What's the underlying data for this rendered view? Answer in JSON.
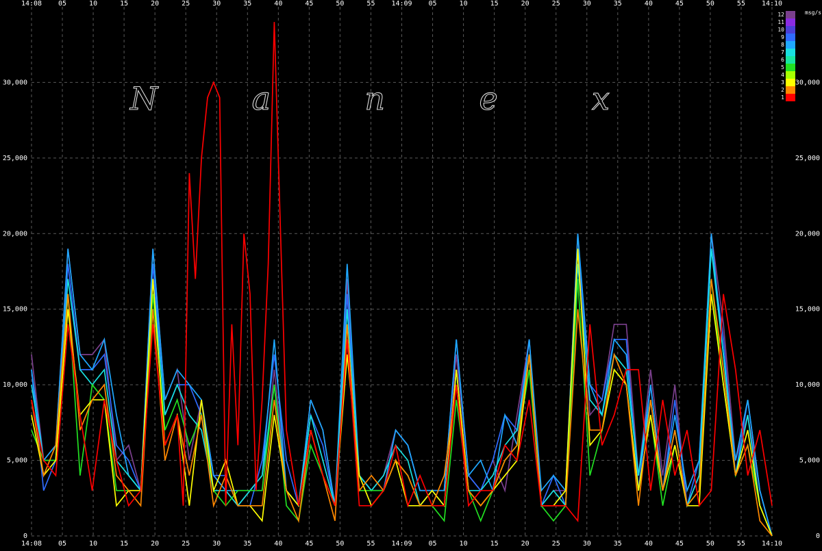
{
  "chart_data": {
    "type": "line",
    "title": "",
    "xlabel": "",
    "ylabel": "msg/s",
    "watermark": "Nanex",
    "ylim": [
      0,
      35000
    ],
    "xlim_seconds": [
      0,
      122
    ],
    "grid": true,
    "legend_position": "top-right",
    "x_top_ticks": [
      "14:08",
      "05",
      "10",
      "15",
      "20",
      "25",
      "30",
      "35",
      "40",
      "45",
      "50",
      "55",
      "14:09",
      "05",
      "10",
      "15",
      "20",
      "25",
      "30",
      "35",
      "40",
      "45",
      "50",
      "55",
      "14:10"
    ],
    "x_bottom_ticks": [
      "14:08",
      "05",
      "10",
      "15",
      "20",
      "25",
      "30",
      "35",
      "40",
      "45",
      "50",
      "55",
      "14:09",
      "05",
      "10",
      "15",
      "20",
      "25",
      "30",
      "35",
      "40",
      "45",
      "50",
      "55",
      "14:10"
    ],
    "y_ticks": [
      {
        "value": 0,
        "label": "0"
      },
      {
        "value": 5000,
        "label": "5,000"
      },
      {
        "value": 10000,
        "label": "10,000"
      },
      {
        "value": 15000,
        "label": "15,000"
      },
      {
        "value": 20000,
        "label": "20,000"
      },
      {
        "value": 25000,
        "label": "25,000"
      },
      {
        "value": 30000,
        "label": "30,000"
      }
    ],
    "legend": [
      {
        "label": "12",
        "color": "#7a3f8c"
      },
      {
        "label": "11",
        "color": "#8a2be2"
      },
      {
        "label": "10",
        "color": "#4b3fd6"
      },
      {
        "label": "9",
        "color": "#2f6bff"
      },
      {
        "label": "8",
        "color": "#1fa8ff"
      },
      {
        "label": "7",
        "color": "#19e0e0"
      },
      {
        "label": "6",
        "color": "#18e6a0"
      },
      {
        "label": "5",
        "color": "#22e022"
      },
      {
        "label": "4",
        "color": "#a6ff00"
      },
      {
        "label": "3",
        "color": "#ffff00"
      },
      {
        "label": "2",
        "color": "#ff8800"
      },
      {
        "label": "1",
        "color": "#ff0000"
      }
    ],
    "series": [
      {
        "color": "#7a3f8c",
        "x": [
          0,
          2,
          4,
          6,
          8,
          10,
          12,
          14,
          16,
          18,
          20,
          22,
          24,
          26,
          28,
          30,
          32,
          34,
          36,
          38,
          40,
          42,
          44,
          46,
          48,
          50,
          52,
          54,
          56,
          58,
          60,
          62,
          64,
          66,
          68,
          70,
          72,
          74,
          76,
          78,
          80,
          82,
          84,
          86,
          88,
          90,
          92,
          94,
          96,
          98,
          100,
          102,
          104,
          106,
          108,
          110,
          112,
          114,
          116,
          118,
          120,
          122
        ],
        "y": [
          12000,
          5000,
          6000,
          19000,
          12000,
          12000,
          13000,
          5000,
          6000,
          3000,
          19000,
          9000,
          11000,
          5000,
          9000,
          4000,
          3000,
          2000,
          3000,
          3000,
          11000,
          3000,
          2000,
          9000,
          7000,
          2000,
          17000,
          4000,
          3000,
          4000,
          7000,
          6000,
          3000,
          3000,
          3000,
          12000,
          4000,
          3000,
          5000,
          3000,
          8000,
          13000,
          2000,
          3000,
          3000,
          20000,
          8000,
          9000,
          14000,
          14000,
          4000,
          11000,
          4000,
          10000,
          2000,
          4000,
          20000,
          14000,
          5000,
          8000,
          3000,
          0
        ]
      },
      {
        "color": "#2f6bff",
        "x": [
          0,
          2,
          4,
          6,
          8,
          10,
          12,
          14,
          16,
          18,
          20,
          22,
          24,
          26,
          28,
          30,
          32,
          34,
          36,
          38,
          40,
          42,
          44,
          46,
          48,
          50,
          52,
          54,
          56,
          58,
          60,
          62,
          64,
          66,
          68,
          70,
          72,
          74,
          76,
          78,
          80,
          82,
          84,
          86,
          88,
          90,
          92,
          94,
          96,
          98,
          100,
          102,
          104,
          106,
          108,
          110,
          112,
          114,
          116,
          118,
          120,
          122
        ],
        "y": [
          11000,
          3000,
          5000,
          18000,
          11000,
          11000,
          12000,
          6000,
          5000,
          3000,
          18000,
          8000,
          10000,
          10000,
          8000,
          4000,
          4000,
          2000,
          2000,
          5000,
          12000,
          5000,
          2000,
          8000,
          6000,
          2000,
          16000,
          4000,
          3000,
          3000,
          7000,
          6000,
          3000,
          3000,
          3000,
          13000,
          4000,
          3000,
          5000,
          8000,
          7000,
          13000,
          2000,
          4000,
          2000,
          19000,
          10000,
          9000,
          13000,
          13000,
          3000,
          10000,
          3000,
          9000,
          2000,
          5000,
          19000,
          13000,
          4000,
          9000,
          3000,
          0
        ]
      },
      {
        "color": "#1fa8ff",
        "x": [
          0,
          2,
          4,
          6,
          8,
          10,
          12,
          14,
          16,
          18,
          20,
          22,
          24,
          26,
          28,
          30,
          32,
          34,
          36,
          38,
          40,
          42,
          44,
          46,
          48,
          50,
          52,
          54,
          56,
          58,
          60,
          62,
          64,
          66,
          68,
          70,
          72,
          74,
          76,
          78,
          80,
          82,
          84,
          86,
          88,
          90,
          92,
          94,
          96,
          98,
          100,
          102,
          104,
          106,
          108,
          110,
          112,
          114,
          116,
          118,
          120,
          122
        ],
        "y": [
          11000,
          5000,
          6000,
          19000,
          12000,
          11000,
          13000,
          8000,
          4000,
          3000,
          19000,
          9000,
          11000,
          10000,
          9000,
          4000,
          3000,
          3000,
          3000,
          4000,
          13000,
          3000,
          2000,
          9000,
          7000,
          2000,
          18000,
          4000,
          3000,
          3000,
          7000,
          6000,
          3000,
          3000,
          3000,
          13000,
          4000,
          5000,
          3000,
          8000,
          6000,
          13000,
          3000,
          4000,
          3000,
          20000,
          10000,
          8000,
          13000,
          12000,
          4000,
          10000,
          3000,
          8000,
          3000,
          5000,
          20000,
          12000,
          5000,
          9000,
          3000,
          0
        ]
      },
      {
        "color": "#19e0e0",
        "x": [
          0,
          2,
          4,
          6,
          8,
          10,
          12,
          14,
          16,
          18,
          20,
          22,
          24,
          26,
          28,
          30,
          32,
          34,
          36,
          38,
          40,
          42,
          44,
          46,
          48,
          50,
          52,
          54,
          56,
          58,
          60,
          62,
          64,
          66,
          68,
          70,
          72,
          74,
          76,
          78,
          80,
          82,
          84,
          86,
          88,
          90,
          92,
          94,
          96,
          98,
          100,
          102,
          104,
          106,
          108,
          110,
          112,
          114,
          116,
          118,
          120,
          122
        ],
        "y": [
          10000,
          5000,
          5000,
          17000,
          11000,
          10000,
          11000,
          5000,
          4000,
          3000,
          17000,
          8000,
          10000,
          8000,
          7000,
          3000,
          3000,
          2000,
          3000,
          4000,
          10000,
          3000,
          2000,
          8000,
          5000,
          2000,
          15000,
          4000,
          3000,
          4000,
          6000,
          5000,
          2000,
          3000,
          2000,
          11000,
          3000,
          3000,
          4000,
          6000,
          7000,
          12000,
          2000,
          3000,
          2000,
          18000,
          9000,
          8000,
          12000,
          11000,
          4000,
          9000,
          3000,
          7000,
          2000,
          4000,
          19000,
          12000,
          4000,
          8000,
          2000,
          0
        ]
      },
      {
        "color": "#22e022",
        "x": [
          0,
          2,
          4,
          6,
          8,
          10,
          12,
          14,
          16,
          18,
          20,
          22,
          24,
          26,
          28,
          30,
          32,
          34,
          36,
          38,
          40,
          42,
          44,
          46,
          48,
          50,
          52,
          54,
          56,
          58,
          60,
          62,
          64,
          66,
          68,
          70,
          72,
          74,
          76,
          78,
          80,
          82,
          84,
          86,
          88,
          90,
          92,
          94,
          96,
          98,
          100,
          102,
          104,
          106,
          108,
          110,
          112,
          114,
          116,
          118,
          120,
          122
        ],
        "y": [
          7000,
          5000,
          5000,
          16000,
          4000,
          10000,
          9000,
          3000,
          3000,
          3000,
          16000,
          7000,
          9000,
          6000,
          8000,
          3000,
          2000,
          3000,
          3000,
          3000,
          10000,
          2000,
          1000,
          6000,
          4000,
          2000,
          13000,
          3000,
          3000,
          3000,
          5000,
          4000,
          2000,
          2000,
          1000,
          9000,
          3000,
          1000,
          3000,
          5000,
          6000,
          11000,
          2000,
          1000,
          2000,
          17000,
          4000,
          7000,
          11000,
          10000,
          3000,
          8000,
          2000,
          6000,
          2000,
          3000,
          17000,
          10000,
          4000,
          6000,
          2000,
          0
        ]
      },
      {
        "color": "#ffff00",
        "x": [
          0,
          2,
          4,
          6,
          8,
          10,
          12,
          14,
          16,
          18,
          20,
          22,
          24,
          26,
          28,
          30,
          32,
          34,
          36,
          38,
          40,
          42,
          44,
          46,
          48,
          50,
          52,
          54,
          56,
          58,
          60,
          62,
          64,
          66,
          68,
          70,
          72,
          74,
          76,
          78,
          80,
          82,
          84,
          86,
          88,
          90,
          92,
          94,
          96,
          98,
          100,
          102,
          104,
          106,
          108,
          110,
          112,
          114,
          116,
          118,
          120,
          122
        ],
        "y": [
          8000,
          4000,
          5000,
          15000,
          8000,
          9000,
          9000,
          2000,
          3000,
          3000,
          17000,
          6000,
          8000,
          2000,
          9000,
          3000,
          5000,
          2000,
          2000,
          1000,
          8000,
          3000,
          2000,
          7000,
          4000,
          2000,
          12000,
          4000,
          2000,
          3000,
          5000,
          2000,
          2000,
          3000,
          2000,
          11000,
          3000,
          2000,
          3000,
          4000,
          5000,
          12000,
          2000,
          2000,
          3000,
          19000,
          6000,
          7000,
          11000,
          10000,
          3000,
          8000,
          3000,
          6000,
          2000,
          2000,
          16000,
          10000,
          4000,
          7000,
          2000,
          0
        ]
      },
      {
        "color": "#ff8800",
        "x": [
          0,
          2,
          4,
          6,
          8,
          10,
          12,
          14,
          16,
          18,
          20,
          22,
          24,
          26,
          28,
          30,
          32,
          34,
          36,
          38,
          40,
          42,
          44,
          46,
          48,
          50,
          52,
          54,
          56,
          58,
          60,
          62,
          64,
          66,
          68,
          70,
          72,
          74,
          76,
          78,
          80,
          82,
          84,
          86,
          88,
          90,
          92,
          94,
          96,
          98,
          100,
          102,
          104,
          106,
          108,
          110,
          112,
          114,
          116,
          118,
          120,
          122
        ],
        "y": [
          9000,
          4000,
          6000,
          16000,
          7000,
          9000,
          10000,
          4000,
          3000,
          2000,
          15000,
          5000,
          8000,
          4000,
          8000,
          2000,
          4000,
          2000,
          2000,
          2000,
          9000,
          3000,
          1000,
          7000,
          4000,
          1000,
          14000,
          3000,
          4000,
          3000,
          5000,
          4000,
          2000,
          2000,
          4000,
          10000,
          3000,
          2000,
          3000,
          5000,
          6000,
          12000,
          2000,
          2000,
          2000,
          15000,
          7000,
          7000,
          12000,
          10000,
          2000,
          9000,
          3000,
          7000,
          2000,
          3000,
          17000,
          11000,
          4000,
          6000,
          1000,
          0
        ]
      },
      {
        "color": "#ff0000",
        "x": [
          0,
          2,
          4,
          6,
          8,
          10,
          12,
          14,
          16,
          18,
          20,
          22,
          24,
          25,
          26,
          27,
          28,
          29,
          30,
          31,
          32,
          33,
          34,
          35,
          36,
          37,
          38,
          39,
          40,
          42,
          44,
          46,
          48,
          50,
          52,
          54,
          56,
          58,
          60,
          62,
          64,
          66,
          68,
          70,
          72,
          74,
          76,
          78,
          80,
          82,
          84,
          86,
          88,
          90,
          92,
          94,
          96,
          98,
          100,
          102,
          104,
          106,
          108,
          110,
          112,
          114,
          116,
          118,
          120,
          122
        ],
        "y": [
          9000,
          5000,
          4000,
          14000,
          8000,
          3000,
          9000,
          5000,
          2000,
          3000,
          14000,
          6000,
          8000,
          2000,
          24000,
          17000,
          25000,
          29000,
          30000,
          29000,
          2000,
          14000,
          6000,
          20000,
          16000,
          3000,
          9000,
          18000,
          34000,
          7000,
          2000,
          7000,
          4000,
          2000,
          13000,
          2000,
          2000,
          3000,
          6000,
          2000,
          4000,
          2000,
          2000,
          10000,
          2000,
          3000,
          3000,
          6000,
          5000,
          9000,
          2000,
          2000,
          2000,
          1000,
          14000,
          6000,
          8000,
          11000,
          11000,
          3000,
          9000,
          4000,
          7000,
          2000,
          3000,
          16000,
          11000,
          4000,
          7000,
          2000
        ]
      }
    ]
  }
}
